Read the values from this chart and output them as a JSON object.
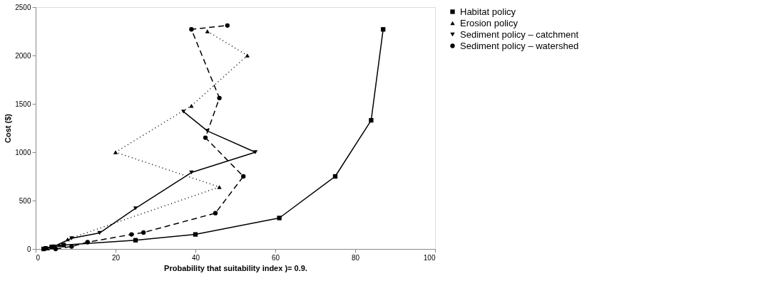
{
  "chart_data": {
    "type": "line",
    "xlabel": "Probability that suitability index )= 0.9.",
    "ylabel": "Cost ($)",
    "xlim": [
      0,
      100
    ],
    "xticks": [
      0,
      20,
      40,
      60,
      80,
      100
    ],
    "ylim": [
      0,
      2500
    ],
    "yticks": [
      0,
      500,
      1000,
      1500,
      2000,
      2500
    ],
    "grid": false,
    "legend": "right",
    "series": [
      {
        "name": "Habitat policy",
        "color": "#000000",
        "marker": "square",
        "line_style": "solid",
        "x": [
          2,
          4,
          7,
          25,
          40,
          61,
          75,
          84,
          87
        ],
        "values": [
          0,
          20,
          40,
          90,
          150,
          320,
          750,
          1330,
          2270
        ]
      },
      {
        "name": "Erosion policy",
        "color": "#000000",
        "marker": "triangle",
        "line_style": "dotted",
        "x": [
          3,
          6,
          8,
          46,
          20,
          39,
          53,
          43
        ],
        "values": [
          5,
          40,
          100,
          640,
          1000,
          1480,
          2000,
          2250
        ]
      },
      {
        "name": "Sediment policy – catchment",
        "color": "#000000",
        "marker": "triangle-down",
        "line_style": "solid",
        "x": [
          2.5,
          4.5,
          9,
          16,
          25,
          39,
          55,
          43,
          37
        ],
        "values": [
          10,
          25,
          110,
          165,
          420,
          790,
          1000,
          1220,
          1420
        ]
      },
      {
        "name": "Sediment policy – watershed",
        "color": "#000000",
        "marker": "circle",
        "line_style": "dashed",
        "x": [
          5,
          9,
          13,
          24,
          27,
          45,
          52,
          42.5,
          46,
          39,
          48
        ],
        "values": [
          0,
          25,
          70,
          150,
          170,
          370,
          750,
          1150,
          1560,
          2270,
          2310
        ]
      }
    ]
  }
}
